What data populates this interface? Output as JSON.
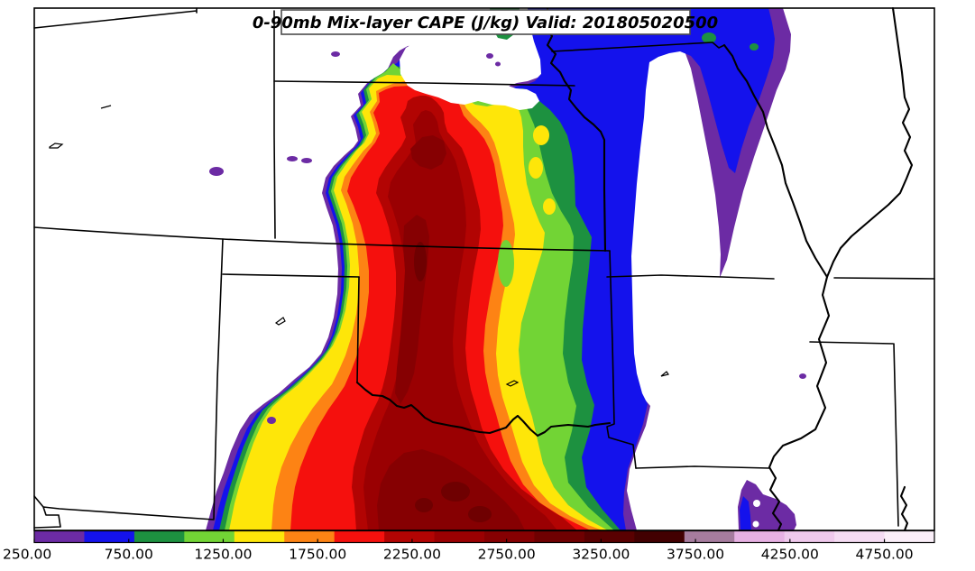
{
  "title": {
    "text": "0-90mb Mix-layer CAPE (J/kg) Valid: 201805020500",
    "variable": "0-90mb Mix-layer CAPE",
    "units": "J/kg",
    "valid_time": "201805020500"
  },
  "colorbar": {
    "tick_labels": [
      "250.00",
      "750.00",
      "1250.00",
      "1750.00",
      "2250.00",
      "2750.00",
      "3250.00",
      "3750.00",
      "4250.00",
      "4750.00"
    ],
    "tick_values": [
      250,
      750,
      1250,
      1750,
      2250,
      2750,
      3250,
      3750,
      4250,
      4750
    ],
    "level_min": 250,
    "level_max": 4750,
    "level_step": 250,
    "segment_colors": [
      "#6C2BA4",
      "#1412EC",
      "#1D9140",
      "#72D435",
      "#FEE609",
      "#FD8314",
      "#F5100D",
      "#B20403",
      "#9A0002",
      "#860002",
      "#6F0001",
      "#590001",
      "#420001",
      "#A67C9E",
      "#E7B1E3",
      "#EFC9EC",
      "#F5DCF3",
      "#FBEFF9"
    ]
  },
  "chart_data": {
    "type": "heatmap",
    "subtype": "filled-contour-weather-map",
    "title": "0-90mb Mix-layer CAPE (J/kg) Valid: 201805020500",
    "legend_position": "bottom",
    "contour_levels": [
      250,
      500,
      750,
      1000,
      1250,
      1500,
      1750,
      2000,
      2250,
      2500,
      2750,
      3000,
      3250,
      3500,
      3750,
      4000,
      4250,
      4500,
      4750
    ],
    "contour_colors": [
      "#6C2BA4",
      "#1412EC",
      "#1D9140",
      "#72D435",
      "#FEE609",
      "#FD8314",
      "#F5100D",
      "#B20403",
      "#9A0002",
      "#860002",
      "#6F0001",
      "#590001",
      "#420001",
      "#A67C9E",
      "#E7B1E3",
      "#EFC9EC",
      "#F5DCF3",
      "#FBEFF9"
    ],
    "max_region": "Dark-red core >3000 J/kg over western Oklahoma / northwest Texas",
    "notes": "NNE-oriented CAPE plume from west Texas through Kansas into Nebraska/Iowa; purple-blue low-CAPE flank east over Missouri border"
  }
}
